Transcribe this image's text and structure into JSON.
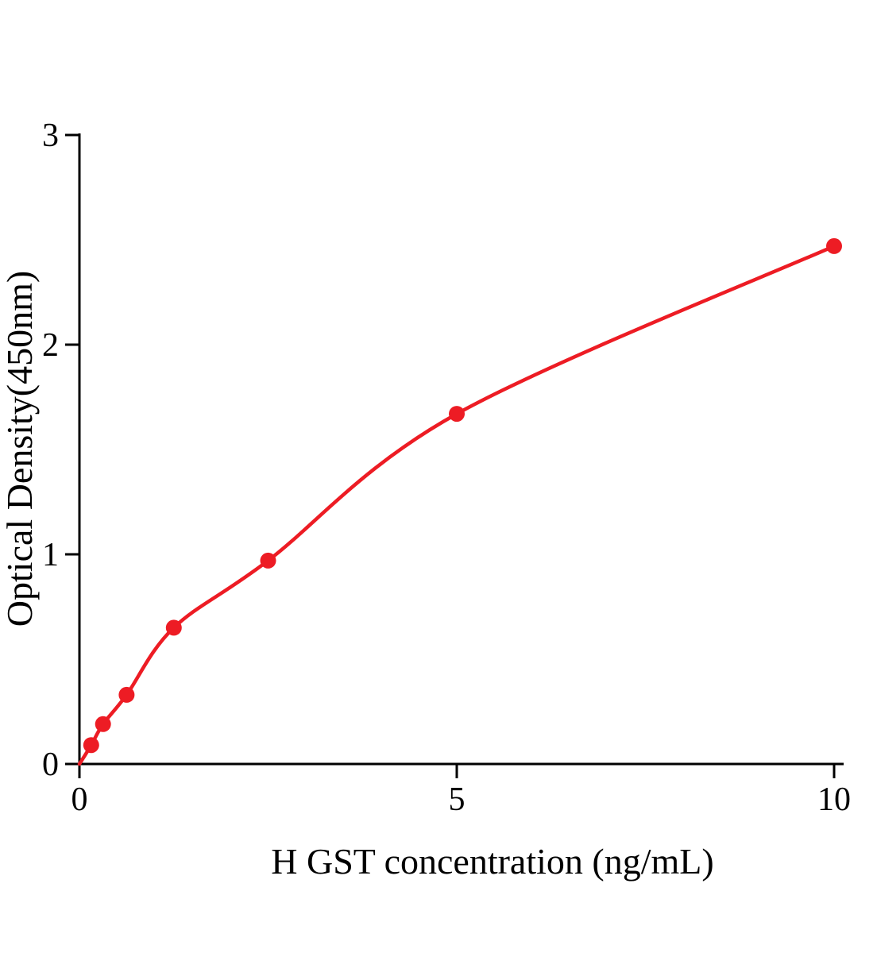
{
  "chart_data": {
    "type": "line",
    "title": "",
    "xlabel": "H GST concentration (ng/mL)",
    "ylabel": "Optical Density(450nm)",
    "x": [
      0.156,
      0.313,
      0.625,
      1.25,
      2.5,
      5,
      10
    ],
    "y": [
      0.09,
      0.19,
      0.33,
      0.65,
      0.97,
      1.67,
      2.47
    ],
    "xlim": [
      0,
      10
    ],
    "ylim": [
      0,
      3
    ],
    "x_ticks": [
      "0",
      "5",
      "10"
    ],
    "x_tick_values": [
      0,
      5,
      10
    ],
    "y_ticks": [
      "0",
      "1",
      "2",
      "3"
    ],
    "y_tick_values": [
      0,
      1,
      2,
      3
    ],
    "line_color": "#ed1c24",
    "axis_color": "#000000",
    "marker": "circle",
    "marker_radius": 10,
    "grid": false,
    "legend": null,
    "curve_starts_at_origin": true
  }
}
